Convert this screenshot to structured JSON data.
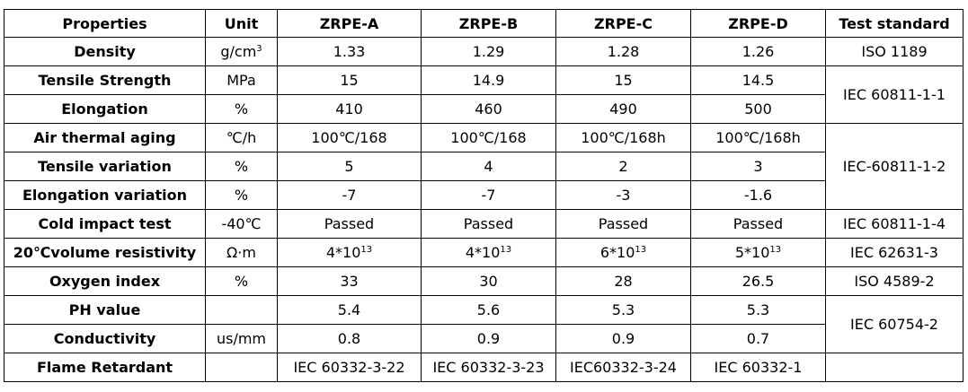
{
  "table": {
    "header": [
      "Properties",
      "Unit",
      "ZRPE-A",
      "ZRPE-B",
      "ZRPE-C",
      "ZRPE-D",
      "Test standard"
    ],
    "rows": [
      {
        "property": "Density",
        "unit": {
          "text": "g/cm",
          "sup": "3"
        },
        "values": [
          "1.33",
          "1.29",
          "1.28",
          "1.26"
        ],
        "standard": "ISO 1189"
      },
      {
        "property": "Tensile Strength",
        "unit": "MPa",
        "values": [
          "15",
          "14.9",
          "15",
          "14.5"
        ],
        "standard": "IEC 60811-1-1"
      },
      {
        "property": "Elongation",
        "unit": "%",
        "values": [
          "410",
          "460",
          "490",
          "500"
        ]
      },
      {
        "property": "Air thermal aging",
        "unit": "℃/h",
        "values": [
          "100℃/168",
          "100℃/168",
          "100℃/168h",
          "100℃/168h"
        ],
        "standard": "IEC-60811-1-2"
      },
      {
        "property": "Tensile variation",
        "unit": "%",
        "values": [
          "5",
          "4",
          "2",
          "3"
        ]
      },
      {
        "property": "Elongation variation",
        "unit": "%",
        "values": [
          "-7",
          "-7",
          "-3",
          "-1.6"
        ]
      },
      {
        "property": "Cold impact test",
        "unit": "-40℃",
        "values": [
          "Passed",
          "Passed",
          "Passed",
          "Passed"
        ],
        "standard": "IEC 60811-1-4"
      },
      {
        "property": "20℃volume resistivity",
        "unit": "Ω·m",
        "values": [
          {
            "text": "4*10",
            "sup": "13"
          },
          {
            "text": "4*10",
            "sup": "13"
          },
          {
            "text": "6*10",
            "sup": "13"
          },
          {
            "text": "5*10",
            "sup": "13"
          }
        ],
        "standard": "IEC 62631-3"
      },
      {
        "property": "Oxygen index",
        "unit": "%",
        "values": [
          "33",
          "30",
          "28",
          "26.5"
        ],
        "standard": "ISO 4589-2"
      },
      {
        "property": "PH value",
        "unit": null,
        "values": [
          "5.4",
          "5.6",
          "5.3",
          "5.3"
        ],
        "standard": "IEC 60754-2"
      },
      {
        "property": "Conductivity",
        "unit": "us/mm",
        "values": [
          "0.8",
          "0.9",
          "0.9",
          "0.7"
        ]
      },
      {
        "property": "Flame Retardant",
        "unit": null,
        "values": [
          "IEC 60332-3-22",
          "IEC 60332-3-23",
          "IEC60332-3-24",
          "IEC 60332-1"
        ],
        "standard": null
      }
    ]
  }
}
